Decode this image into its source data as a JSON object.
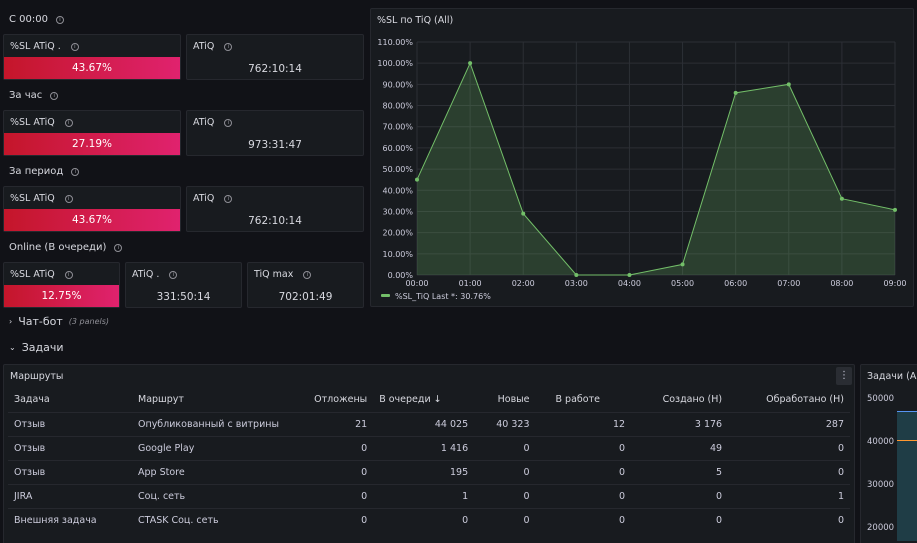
{
  "groups": [
    {
      "title": "С 00:00",
      "sl_title": "%SL ATiQ .",
      "sl_value": "43.67%",
      "atiq_title": "ATiQ",
      "atiq_value": "762:10:14"
    },
    {
      "title": "За час",
      "sl_title": "%SL ATiQ",
      "sl_value": "27.19%",
      "atiq_title": "ATiQ",
      "atiq_value": "973:31:47"
    },
    {
      "title": "За период",
      "sl_title": "%SL ATiQ",
      "sl_value": "43.67%",
      "atiq_title": "ATiQ",
      "atiq_value": "762:10:14"
    }
  ],
  "online": {
    "title": "Online (В очереди)",
    "sl_title": "%SL ATiQ",
    "sl_value": "12.75%",
    "atiq_title": "ATiQ .",
    "atiq_value": "331:50:14",
    "tiq_title": "TiQ max",
    "tiq_value": "702:01:49"
  },
  "chart_panel": {
    "title": "%SL по TiQ (All)"
  },
  "chart_data": {
    "type": "area",
    "title": "%SL по TiQ (All)",
    "x": [
      "00:00",
      "01:00",
      "02:00",
      "03:00",
      "04:00",
      "05:00",
      "06:00",
      "07:00",
      "08:00",
      "09:00"
    ],
    "y_ticks": [
      "0.00%",
      "10.00%",
      "20.00%",
      "30.00%",
      "40.00%",
      "50.00%",
      "60.00%",
      "70.00%",
      "80.00%",
      "90.00%",
      "100.00%",
      "110.00%"
    ],
    "ylim": [
      0,
      110
    ],
    "grid": true,
    "legend_position": "bottom-left",
    "series": [
      {
        "name": "%SL_TiQ",
        "legend_text": "%SL_TiQ  Last *: 30.76%",
        "color": "#73bf69",
        "values": [
          45,
          100,
          29,
          0,
          0,
          5,
          86,
          90,
          36,
          30.76
        ]
      }
    ]
  },
  "rows": {
    "chatbot": {
      "label": "Чат-бот",
      "sub": "(3 panels)"
    },
    "tasks": {
      "label": "Задачи"
    }
  },
  "routes_panel": {
    "title": "Маршруты",
    "menu": "⋮",
    "columns": [
      "Задача",
      "Маршрут",
      "Отложены",
      "В очереди ↓",
      "Новые",
      "В работе",
      "Создано (Н)",
      "Обработано (Н)"
    ],
    "rows": [
      [
        "Отзыв",
        "Опубликованный с витрины",
        "21",
        "44 025",
        "40 323",
        "12",
        "3 176",
        "287"
      ],
      [
        "Отзыв",
        "Google Play",
        "0",
        "1 416",
        "0",
        "0",
        "49",
        "0"
      ],
      [
        "Отзыв",
        "App Store",
        "0",
        "195",
        "0",
        "0",
        "5",
        "0"
      ],
      [
        "JIRA",
        "Соц. сеть",
        "0",
        "1",
        "0",
        "0",
        "0",
        "1"
      ],
      [
        "Внешняя задача",
        "CTASK Соц. сеть",
        "0",
        "0",
        "0",
        "0",
        "0",
        "0"
      ]
    ]
  },
  "right_panel": {
    "title": "Задачи (All",
    "y_ticks": [
      "50000",
      "40000",
      "30000",
      "20000"
    ]
  }
}
